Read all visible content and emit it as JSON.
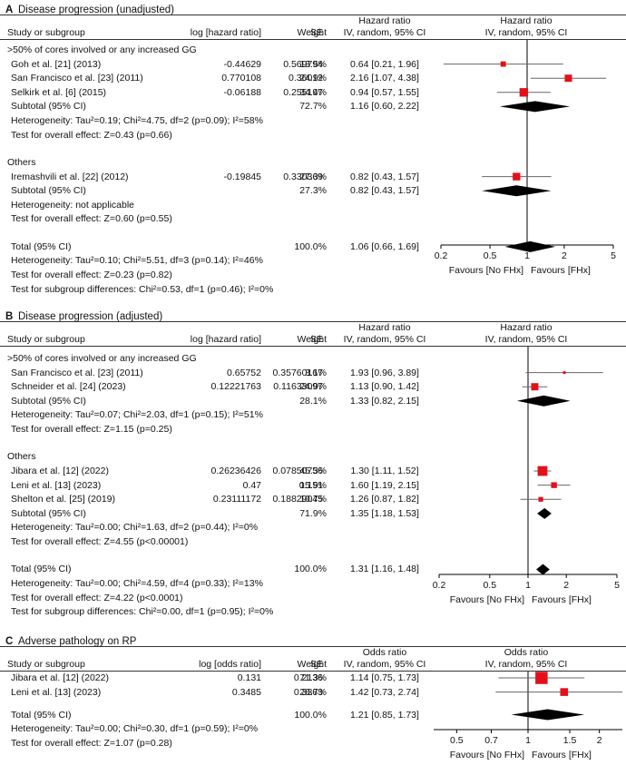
{
  "panels": [
    {
      "label": "A",
      "title": "Disease progression (unadjusted)",
      "col_study": "Study or subgroup",
      "col_est": "log [hazard ratio]",
      "col_se": "SE",
      "col_weight": "Weight",
      "col_effect_top": "Hazard ratio",
      "col_effect_bottom": "IV, random, 95% CI",
      "plot_title_top": "Hazard ratio",
      "plot_title_bottom": "IV, random, 95% CI",
      "favours_left": "Favours [No FHx]",
      "favours_right": "Favours [FHx]",
      "axis_ticks": [
        "0.2",
        "0.5",
        "1",
        "2",
        "5"
      ],
      "axis_tick_values": [
        0.2,
        0.5,
        1,
        2,
        5
      ],
      "axis_range": [
        0.2,
        5
      ],
      "subgroups": [
        {
          "title": ">50% of cores involved or any increased GG",
          "studies": [
            {
              "name": "Goh et al. [21] (2013)",
              "est": "-0.44629",
              "se": "0.569794",
              "weight": "13.5%",
              "ci_text": "0.64 [0.21, 1.96]",
              "hr": 0.64,
              "lo": 0.21,
              "hi": 1.96,
              "w": 13.5
            },
            {
              "name": "San Francisco et al. [23] (2011)",
              "est": "0.770108",
              "se": "0.36012",
              "weight": "24.9%",
              "ci_text": "2.16 [1.07, 4.38]",
              "hr": 2.16,
              "lo": 1.07,
              "hi": 4.38,
              "w": 24.9
            },
            {
              "name": "Selkirk et al. [6] (2015)",
              "est": "-0.06188",
              "se": "0.255197",
              "weight": "34.4%",
              "ci_text": "0.94 [0.57, 1.55]",
              "hr": 0.94,
              "lo": 0.57,
              "hi": 1.55,
              "w": 34.4
            }
          ],
          "subtotal": {
            "label": "Subtotal (95% CI)",
            "weight": "72.7%",
            "ci_text": "1.16 [0.60, 2.22]",
            "hr": 1.16,
            "lo": 0.6,
            "hi": 2.22
          },
          "heterogeneity": "Heterogeneity: Tau²=0.19; Chi²=4.75, df=2 (p=0.09); I²=58%",
          "overall": "Test for overall effect: Z=0.43 (p=0.66)"
        },
        {
          "title": "Others",
          "studies": [
            {
              "name": "Iremashvili et al. [22] (2012)",
              "est": "-0.19845",
              "se": "0.330369",
              "weight": "27.3%",
              "ci_text": "0.82 [0.43, 1.57]",
              "hr": 0.82,
              "lo": 0.43,
              "hi": 1.57,
              "w": 27.3
            }
          ],
          "subtotal": {
            "label": "Subtotal (95% CI)",
            "weight": "27.3%",
            "ci_text": "0.82 [0.43, 1.57]",
            "hr": 0.82,
            "lo": 0.43,
            "hi": 1.57
          },
          "heterogeneity": "Heterogeneity: not applicable",
          "overall": "Test for overall effect: Z=0.60 (p=0.55)"
        }
      ],
      "total": {
        "label": "Total (95% CI)",
        "weight": "100.0%",
        "ci_text": "1.06 [0.66, 1.69]",
        "hr": 1.06,
        "lo": 0.66,
        "hi": 1.69
      },
      "total_heterogeneity": "Heterogeneity: Tau²=0.10; Chi²=5.51, df=3 (p=0.14); I²=46%",
      "total_overall": "Test for overall effect: Z=0.23 (p=0.82)",
      "subgroup_diff": "Test for subgroup differences: Chi²=0.53, df=1 (p=0.46); I²=0%"
    },
    {
      "label": "B",
      "title": "Disease progression (adjusted)",
      "col_study": "Study or subgroup",
      "col_est": "log [hazard ratio]",
      "col_se": "SE",
      "col_weight": "Weight",
      "col_effect_top": "Hazard ratio",
      "col_effect_bottom": "IV, random, 95% CI",
      "plot_title_top": "Hazard ratio",
      "plot_title_bottom": "IV, random, 95% CI",
      "favours_left": "Favours [No FHx]",
      "favours_right": "Favours [FHx]",
      "axis_ticks": [
        "0.2",
        "0.5",
        "1",
        "2",
        "5"
      ],
      "axis_tick_values": [
        0.2,
        0.5,
        1,
        2,
        5
      ],
      "axis_range": [
        0.2,
        5
      ],
      "subgroups": [
        {
          "title": ">50% of cores involved or any increased GG",
          "studies": [
            {
              "name": "San Francisco et al. [23] (2011)",
              "est": "0.65752",
              "se": "0.35760167",
              "weight": "3.1%",
              "ci_text": "1.93 [0.96, 3.89]",
              "hr": 1.93,
              "lo": 0.96,
              "hi": 3.89,
              "w": 3.1
            },
            {
              "name": "Schneider et al. [24] (2023)",
              "est": "0.12221763",
              "se": "0.11633097",
              "weight": "24.9%",
              "ci_text": "1.13 [0.90, 1.42]",
              "hr": 1.13,
              "lo": 0.9,
              "hi": 1.42,
              "w": 24.9
            }
          ],
          "subtotal": {
            "label": "Subtotal (95% CI)",
            "weight": "28.1%",
            "ci_text": "1.33 [0.82, 2.15]",
            "hr": 1.33,
            "lo": 0.82,
            "hi": 2.15
          },
          "heterogeneity": "Heterogeneity: Tau²=0.07; Chi²=2.03, df=1 (p=0.15); I²=51%",
          "overall": "Test for overall effect: Z=1.15 (p=0.25)"
        },
        {
          "title": "Others",
          "studies": [
            {
              "name": "Jibara et al. [12] (2022)",
              "est": "0.26236426",
              "se": "0.07850756",
              "weight": "45.3%",
              "ci_text": "1.30 [1.11, 1.52]",
              "hr": 1.3,
              "lo": 1.11,
              "hi": 1.52,
              "w": 45.3
            },
            {
              "name": "Leni et al. [13] (2023)",
              "est": "0.47",
              "se": "0.151",
              "weight": "15.9%",
              "ci_text": "1.60 [1.19, 2.15]",
              "hr": 1.6,
              "lo": 1.19,
              "hi": 2.15,
              "w": 15.9
            },
            {
              "name": "Shelton et al. [25] (2019)",
              "est": "0.23111172",
              "se": "0.18829045",
              "weight": "10.7%",
              "ci_text": "1.26 [0.87, 1.82]",
              "hr": 1.26,
              "lo": 0.87,
              "hi": 1.82,
              "w": 10.7
            }
          ],
          "subtotal": {
            "label": "Subtotal (95% CI)",
            "weight": "71.9%",
            "ci_text": "1.35 [1.18, 1.53]",
            "hr": 1.35,
            "lo": 1.18,
            "hi": 1.53
          },
          "heterogeneity": "Heterogeneity: Tau²=0.00; Chi²=1.63, df=2 (p=0.44); I²=0%",
          "overall": "Test for overall effect: Z=4.55 (p<0.00001)"
        }
      ],
      "total": {
        "label": "Total (95% CI)",
        "weight": "100.0%",
        "ci_text": "1.31 [1.16, 1.48]",
        "hr": 1.31,
        "lo": 1.16,
        "hi": 1.48
      },
      "total_heterogeneity": "Heterogeneity: Tau²=0.00; Chi²=4.59, df=4 (p=0.33); I²=13%",
      "total_overall": "Test for overall effect: Z=4.22 (p<0.0001)",
      "subgroup_diff": "Test for subgroup differences: Chi²=0.00, df=1 (p=0.95); I²=0%"
    },
    {
      "label": "C",
      "title": "Adverse pathology on RP",
      "col_study": "Study or subgroup",
      "col_est": "log [odds ratio]",
      "col_se": "SE",
      "col_weight": "Weight",
      "col_effect_top": "Odds ratio",
      "col_effect_bottom": "IV, random, 95% CI",
      "plot_title_top": "Odds ratio",
      "plot_title_bottom": "IV, random, 95% CI",
      "favours_left": "Favours [No FHx]",
      "favours_right": "Favours [FHx]",
      "axis_ticks": [
        "0.5",
        "0.7",
        "1",
        "1.5",
        "2"
      ],
      "axis_tick_values": [
        0.5,
        0.7,
        1,
        1.5,
        2
      ],
      "axis_range": [
        0.4,
        2.5
      ],
      "studies": [
        {
          "name": "Jibara et al. [12] (2022)",
          "est": "0.131",
          "se": "0.2136",
          "weight": "71.3%",
          "ci_text": "1.14 [0.75, 1.73]",
          "hr": 1.14,
          "lo": 0.75,
          "hi": 1.73,
          "w": 71.3
        },
        {
          "name": "Leni et al. [13] (2023)",
          "est": "0.3485",
          "se": "0.3363",
          "weight": "28.7%",
          "ci_text": "1.42 [0.73, 2.74]",
          "hr": 1.42,
          "lo": 0.73,
          "hi": 2.74,
          "w": 28.7
        }
      ],
      "total": {
        "label": "Total (95% CI)",
        "weight": "100.0%",
        "ci_text": "1.21 [0.85, 1.73]",
        "hr": 1.21,
        "lo": 0.85,
        "hi": 1.73
      },
      "total_heterogeneity": "Heterogeneity: Tau²=0.00; Chi²=0.30, df=1 (p=0.59); I²=0%",
      "total_overall": "Test for overall effect: Z=1.07 (p=0.28)"
    }
  ],
  "colors": {
    "study_marker": "#e3101a",
    "diamond": "#000000",
    "ci_line": "#666666"
  },
  "chart_data": [
    {
      "type": "forest",
      "title": "Disease progression (unadjusted)",
      "xlabel": "Hazard ratio",
      "x_scale": "log",
      "xlim": [
        0.2,
        5
      ],
      "x_ticks": [
        0.2,
        0.5,
        1,
        2,
        5
      ],
      "series": [
        {
          "name": "Goh et al. [21] (2013)",
          "hr": 0.64,
          "ci": [
            0.21,
            1.96
          ],
          "weight": 13.5
        },
        {
          "name": "San Francisco et al. [23] (2011)",
          "hr": 2.16,
          "ci": [
            1.07,
            4.38
          ],
          "weight": 24.9
        },
        {
          "name": "Selkirk et al. [6] (2015)",
          "hr": 0.94,
          "ci": [
            0.57,
            1.55
          ],
          "weight": 34.4
        },
        {
          "name": "Subtotal (95% CI)",
          "hr": 1.16,
          "ci": [
            0.6,
            2.22
          ],
          "weight": 72.7
        },
        {
          "name": "Iremashvili et al. [22] (2012)",
          "hr": 0.82,
          "ci": [
            0.43,
            1.57
          ],
          "weight": 27.3
        },
        {
          "name": "Subtotal (95% CI)",
          "hr": 0.82,
          "ci": [
            0.43,
            1.57
          ],
          "weight": 27.3
        },
        {
          "name": "Total (95% CI)",
          "hr": 1.06,
          "ci": [
            0.66,
            1.69
          ],
          "weight": 100.0
        }
      ]
    },
    {
      "type": "forest",
      "title": "Disease progression (adjusted)",
      "xlabel": "Hazard ratio",
      "x_scale": "log",
      "xlim": [
        0.2,
        5
      ],
      "x_ticks": [
        0.2,
        0.5,
        1,
        2,
        5
      ],
      "series": [
        {
          "name": "San Francisco et al. [23] (2011)",
          "hr": 1.93,
          "ci": [
            0.96,
            3.89
          ],
          "weight": 3.1
        },
        {
          "name": "Schneider et al. [24] (2023)",
          "hr": 1.13,
          "ci": [
            0.9,
            1.42
          ],
          "weight": 24.9
        },
        {
          "name": "Subtotal (95% CI)",
          "hr": 1.33,
          "ci": [
            0.82,
            2.15
          ],
          "weight": 28.1
        },
        {
          "name": "Jibara et al. [12] (2022)",
          "hr": 1.3,
          "ci": [
            1.11,
            1.52
          ],
          "weight": 45.3
        },
        {
          "name": "Leni et al. [13] (2023)",
          "hr": 1.6,
          "ci": [
            1.19,
            2.15
          ],
          "weight": 15.9
        },
        {
          "name": "Shelton et al. [25] (2019)",
          "hr": 1.26,
          "ci": [
            0.87,
            1.82
          ],
          "weight": 10.7
        },
        {
          "name": "Subtotal (95% CI)",
          "hr": 1.35,
          "ci": [
            1.18,
            1.53
          ],
          "weight": 71.9
        },
        {
          "name": "Total (95% CI)",
          "hr": 1.31,
          "ci": [
            1.16,
            1.48
          ],
          "weight": 100.0
        }
      ]
    },
    {
      "type": "forest",
      "title": "Adverse pathology on RP",
      "xlabel": "Odds ratio",
      "x_scale": "log",
      "xlim": [
        0.4,
        2.5
      ],
      "x_ticks": [
        0.5,
        0.7,
        1,
        1.5,
        2
      ],
      "series": [
        {
          "name": "Jibara et al. [12] (2022)",
          "or": 1.14,
          "ci": [
            0.75,
            1.73
          ],
          "weight": 71.3
        },
        {
          "name": "Leni et al. [13] (2023)",
          "or": 1.42,
          "ci": [
            0.73,
            2.74
          ],
          "weight": 28.7
        },
        {
          "name": "Total (95% CI)",
          "or": 1.21,
          "ci": [
            0.85,
            1.73
          ],
          "weight": 100.0
        }
      ]
    }
  ]
}
